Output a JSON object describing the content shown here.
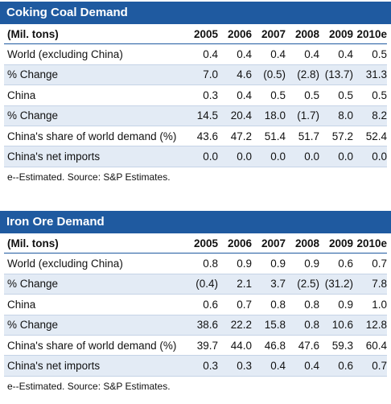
{
  "coking": {
    "title": "Coking Coal Demand",
    "unit_header": "(Mil. tons)",
    "years": [
      "2005",
      "2006",
      "2007",
      "2008",
      "2009",
      "2010e"
    ],
    "rows": [
      {
        "label": "World (excluding China)",
        "values": [
          "0.4",
          "0.4",
          "0.4",
          "0.4",
          "0.4",
          "0.5"
        ]
      },
      {
        "label": "% Change",
        "values": [
          "7.0",
          "4.6",
          "(0.5)",
          "(2.8)",
          "(13.7)",
          "31.3"
        ]
      },
      {
        "label": "China",
        "values": [
          "0.3",
          "0.4",
          "0.5",
          "0.5",
          "0.5",
          "0.5"
        ]
      },
      {
        "label": "% Change",
        "values": [
          "14.5",
          "20.4",
          "18.0",
          "(1.7)",
          "8.0",
          "8.2"
        ]
      },
      {
        "label": "China's share of world demand (%)",
        "values": [
          "43.6",
          "47.2",
          "51.4",
          "51.7",
          "57.2",
          "52.4"
        ]
      },
      {
        "label": "China's net imports",
        "values": [
          "0.0",
          "0.0",
          "0.0",
          "0.0",
          "0.0",
          "0.0"
        ]
      }
    ],
    "note": "e--Estimated. Source: S&P Estimates."
  },
  "iron": {
    "title": "Iron Ore Demand",
    "unit_header": "(Mil. tons)",
    "years": [
      "2005",
      "2006",
      "2007",
      "2008",
      "2009",
      "2010e"
    ],
    "rows": [
      {
        "label": "World (excluding China)",
        "values": [
          "0.8",
          "0.9",
          "0.9",
          "0.9",
          "0.6",
          "0.7"
        ]
      },
      {
        "label": "% Change",
        "values": [
          "(0.4)",
          "2.1",
          "3.7",
          "(2.5)",
          "(31.2)",
          "7.8"
        ]
      },
      {
        "label": "China",
        "values": [
          "0.6",
          "0.7",
          "0.8",
          "0.8",
          "0.9",
          "1.0"
        ]
      },
      {
        "label": "% Change",
        "values": [
          "38.6",
          "22.2",
          "15.8",
          "0.8",
          "10.6",
          "12.8"
        ]
      },
      {
        "label": "China's share of world demand (%)",
        "values": [
          "39.7",
          "44.0",
          "46.8",
          "47.6",
          "59.3",
          "60.4"
        ]
      },
      {
        "label": "China's net imports",
        "values": [
          "0.3",
          "0.3",
          "0.4",
          "0.4",
          "0.6",
          "0.7"
        ]
      }
    ],
    "note": "e--Estimated. Source: S&P Estimates."
  }
}
